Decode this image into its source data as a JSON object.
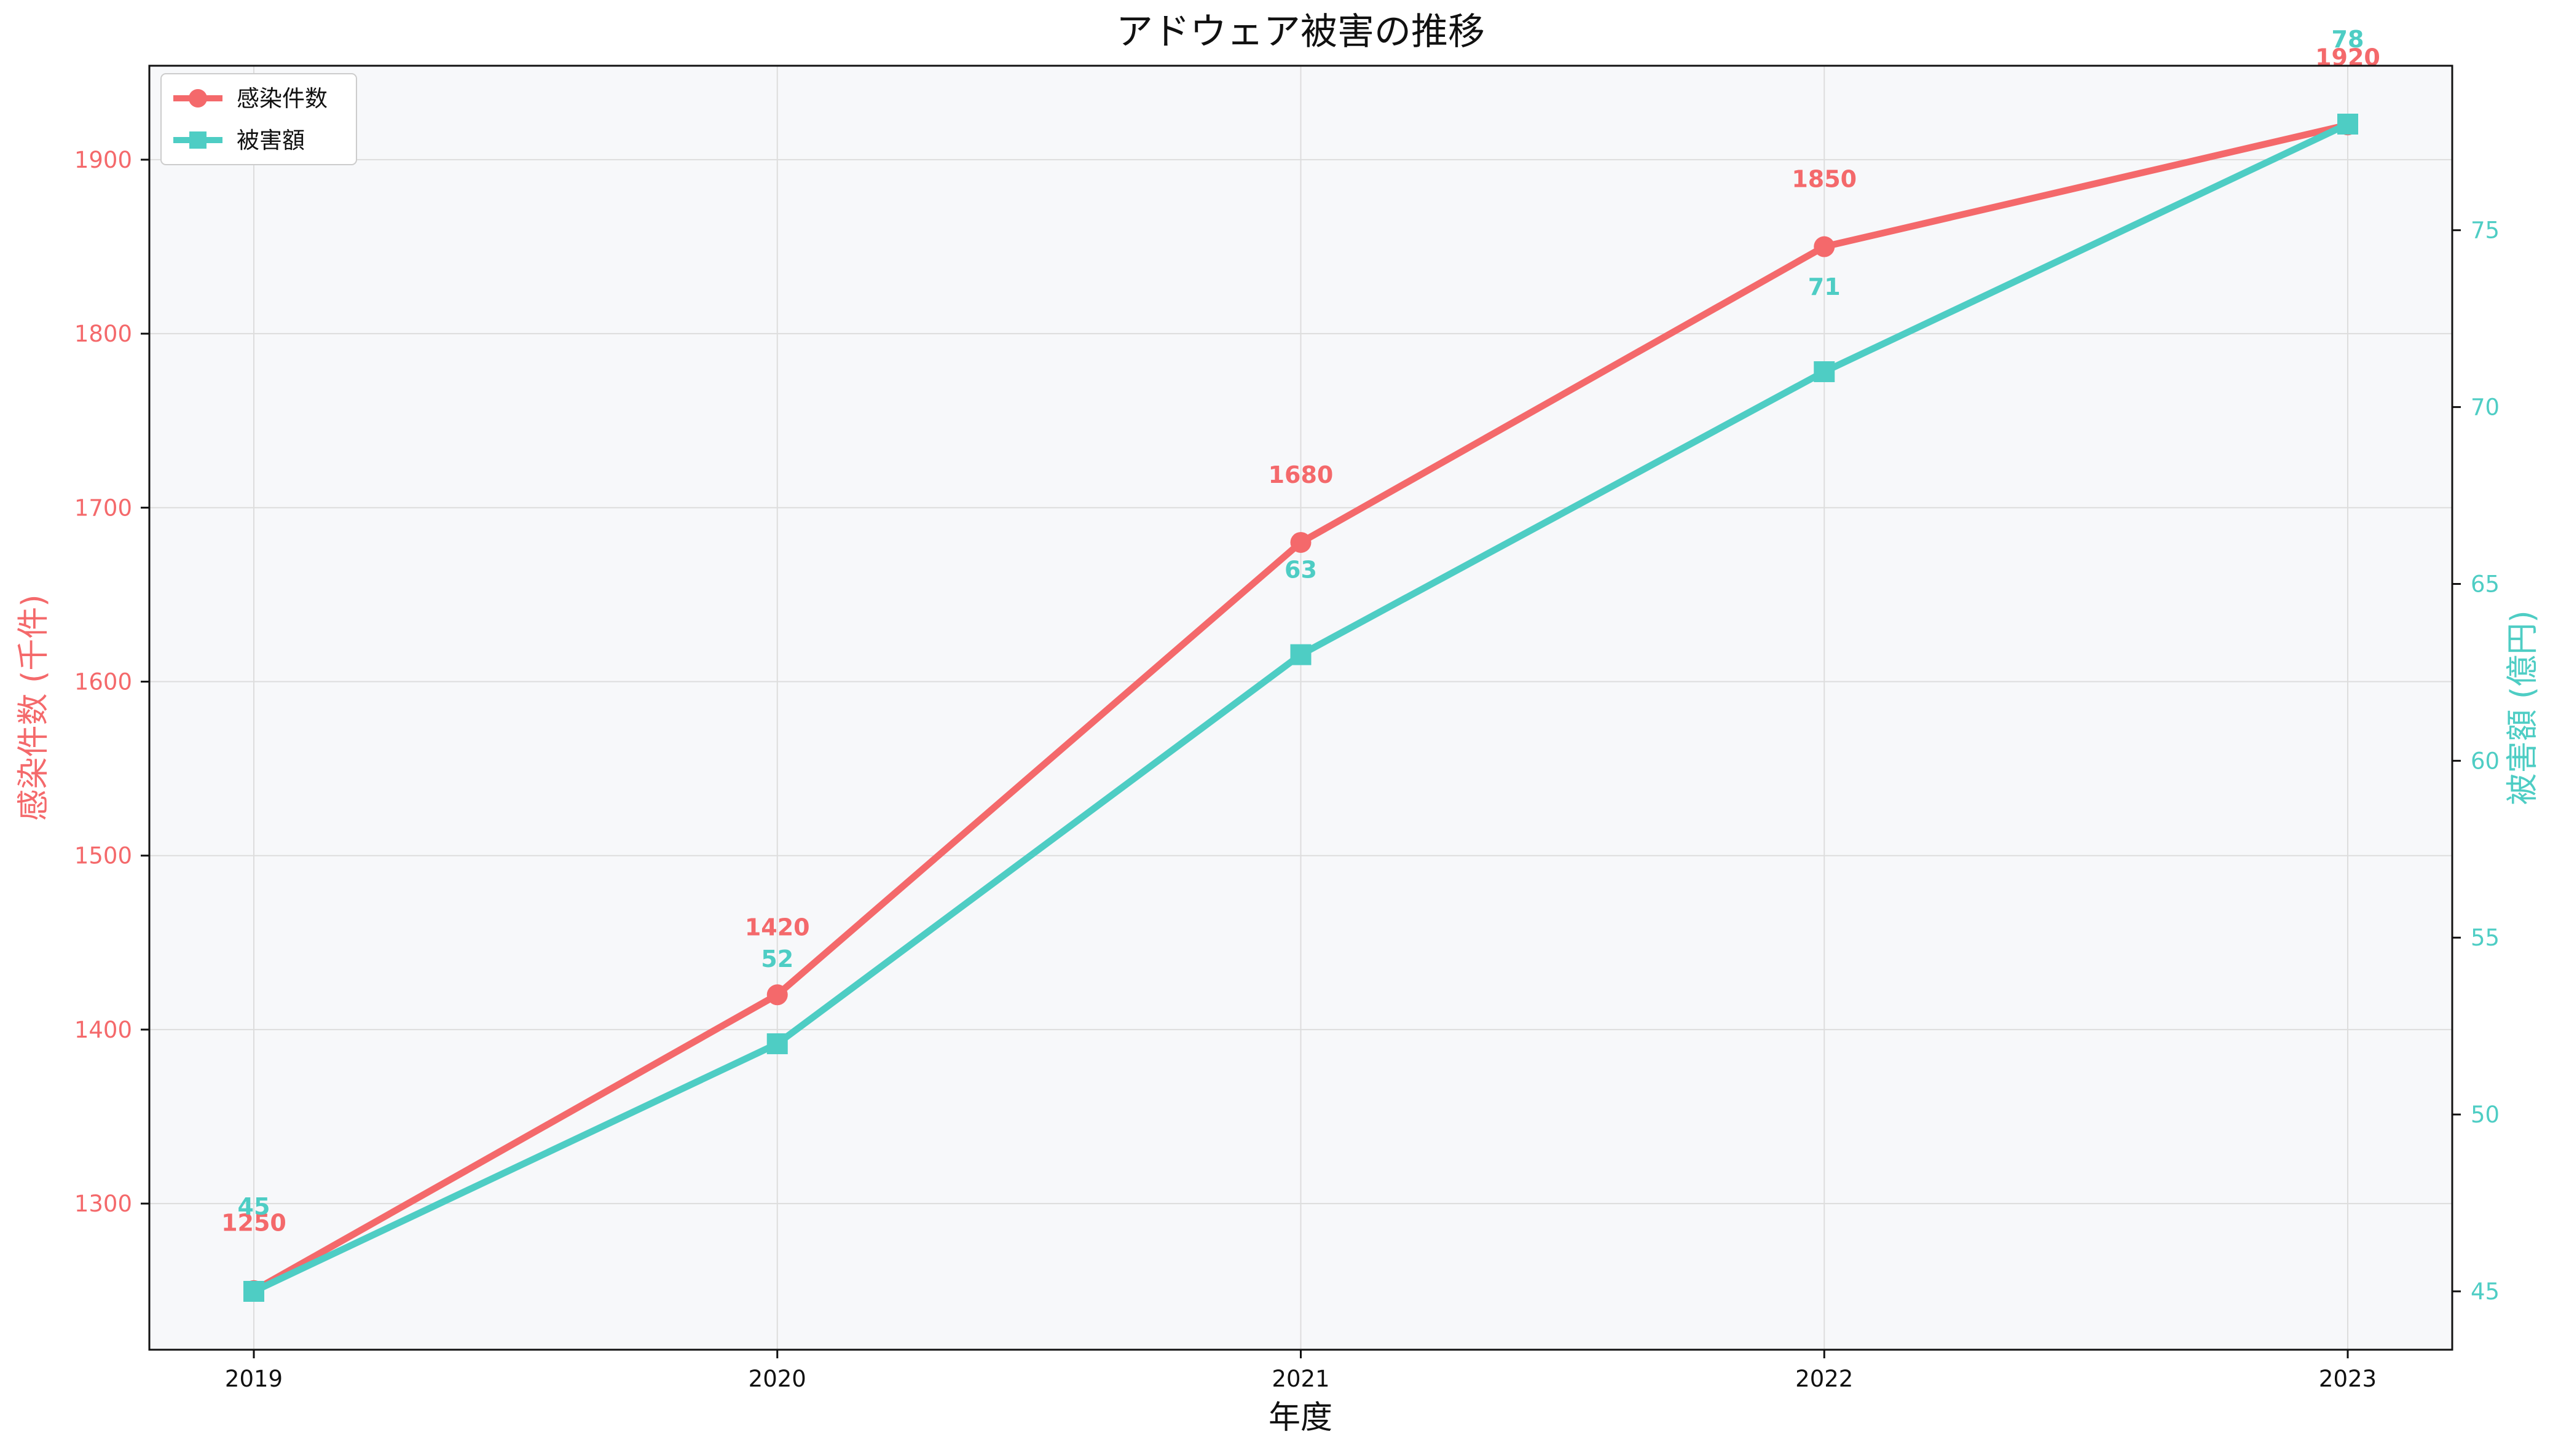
{
  "chart_data": {
    "type": "line",
    "title": "アドウェア被害の推移",
    "xlabel": "年度",
    "ylabel_left": "感染件数 (千件)",
    "ylabel_right": "被害額 (億円)",
    "categories": [
      "2019",
      "2020",
      "2021",
      "2022",
      "2023"
    ],
    "ylim_left": [
      1216,
      1954
    ],
    "ylim_right": [
      43.35,
      79.65
    ],
    "yticks_left": [
      "1300",
      "1400",
      "1500",
      "1600",
      "1700",
      "1800",
      "1900"
    ],
    "yticks_right": [
      "45",
      "50",
      "55",
      "60",
      "65",
      "70",
      "75"
    ],
    "grid": true,
    "legend_position": "top-left",
    "series": [
      {
        "name": "感染件数",
        "axis": "left",
        "marker": "circle",
        "color": "#F4696B",
        "values": [
          1250,
          1420,
          1680,
          1850,
          1920
        ],
        "labels": [
          "1250",
          "1420",
          "1680",
          "1850",
          "1920"
        ]
      },
      {
        "name": "被害額",
        "axis": "right",
        "marker": "square",
        "color": "#4ECDC4",
        "values": [
          45,
          52,
          63,
          71,
          78
        ],
        "labels": [
          "45",
          "52",
          "63",
          "71",
          "78"
        ]
      }
    ]
  },
  "colors": {
    "plot_background": "#F7F8FA",
    "grid": "#DDDDDD",
    "left_axis": "#F4696B",
    "right_axis": "#4ECDC4",
    "text": "#111111"
  }
}
